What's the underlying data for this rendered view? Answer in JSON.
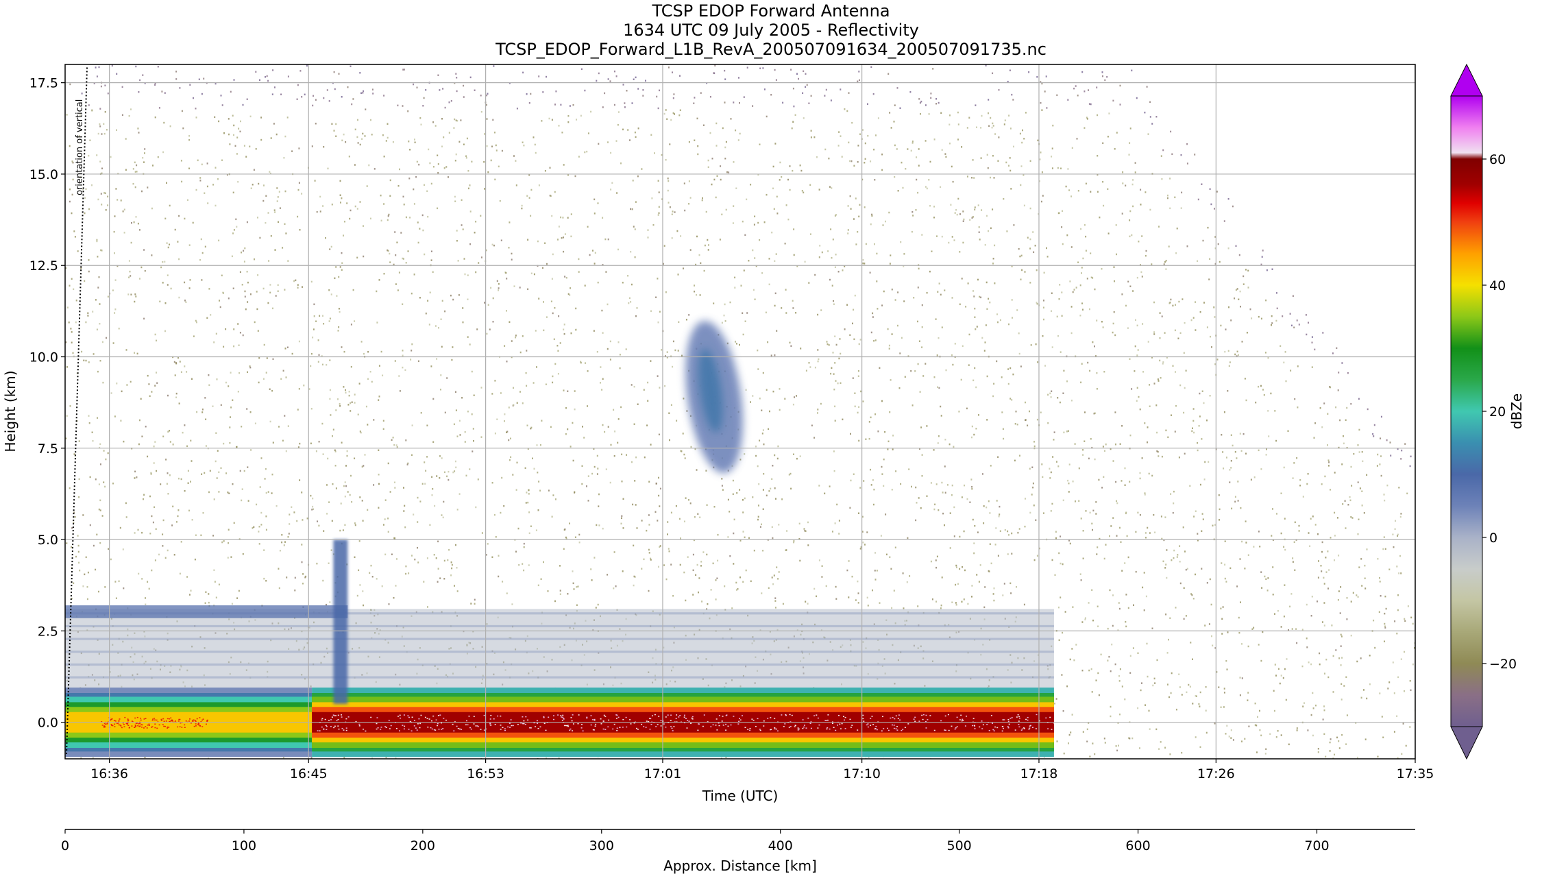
{
  "titles": {
    "line1": "TCSP EDOP Forward Antenna",
    "line2": "1634 UTC 09 July 2005 - Reflectivity",
    "line3": "TCSP_EDOP_Forward_L1B_RevA_200507091634_200507091735.nc"
  },
  "annotation": "orientation of vertical",
  "colors": {
    "background": "#ffffff",
    "grid": "#b0b0b0",
    "colormap": [
      {
        "dbz": -30,
        "color": "#6f5f8f"
      },
      {
        "dbz": -25,
        "color": "#8a6f86"
      },
      {
        "dbz": -20,
        "color": "#8f8a55"
      },
      {
        "dbz": -15,
        "color": "#a8a878"
      },
      {
        "dbz": -10,
        "color": "#c4c6a4"
      },
      {
        "dbz": -5,
        "color": "#c8ccca"
      },
      {
        "dbz": 0,
        "color": "#a9b2c8"
      },
      {
        "dbz": 5,
        "color": "#6d82b8"
      },
      {
        "dbz": 10,
        "color": "#4a68a8"
      },
      {
        "dbz": 15,
        "color": "#3a8fb0"
      },
      {
        "dbz": 20,
        "color": "#40c8b0"
      },
      {
        "dbz": 25,
        "color": "#2aa84a"
      },
      {
        "dbz": 30,
        "color": "#129018"
      },
      {
        "dbz": 35,
        "color": "#8cc818"
      },
      {
        "dbz": 40,
        "color": "#f5e000"
      },
      {
        "dbz": 45,
        "color": "#ffa000"
      },
      {
        "dbz": 50,
        "color": "#f04010"
      },
      {
        "dbz": 53,
        "color": "#e00000"
      },
      {
        "dbz": 56,
        "color": "#a00000"
      },
      {
        "dbz": 60,
        "color": "#800000"
      },
      {
        "dbz": 61,
        "color": "#f0e0f0"
      },
      {
        "dbz": 65,
        "color": "#f080f0"
      },
      {
        "dbz": 70,
        "color": "#b000f0"
      }
    ]
  },
  "chart_data": {
    "type": "heatmap",
    "x_axis": {
      "label": "Time (UTC)",
      "tick_labels": [
        "16:36",
        "16:45",
        "16:53",
        "17:01",
        "17:10",
        "17:18",
        "17:26",
        "17:35"
      ],
      "range": [
        "16:34",
        "17:35"
      ]
    },
    "y_axis": {
      "label": "Height (km)",
      "range": [
        -1.0,
        18.0
      ],
      "ticks": [
        0.0,
        2.5,
        5.0,
        7.5,
        10.0,
        12.5,
        15.0,
        17.5
      ],
      "tick_labels": [
        "0.0",
        "2.5",
        "5.0",
        "7.5",
        "10.0",
        "12.5",
        "15.0",
        "17.5"
      ]
    },
    "x2_axis": {
      "label": "Approx. Distance [km]",
      "range": [
        0,
        755
      ],
      "ticks": [
        0,
        100,
        200,
        300,
        400,
        500,
        600,
        700
      ],
      "tick_labels": [
        "0",
        "100",
        "200",
        "300",
        "400",
        "500",
        "600",
        "700"
      ]
    },
    "colorbar": {
      "label": "dBZe",
      "range": [
        -30,
        70
      ],
      "ticks": [
        -20,
        0,
        20,
        40,
        60
      ],
      "tick_labels": [
        "−20",
        "0",
        "20",
        "40",
        "60"
      ],
      "extend": "both"
    },
    "grid": true,
    "features": {
      "noise_floor_dbz": -15,
      "data_end_distance_km": 553,
      "surface_band_km": [
        -0.9,
        0.9
      ],
      "surface_dbz_weak_section": 42,
      "surface_dbz_strong_section": 56,
      "weak_to_strong_transition_km": 138,
      "boundary_layer_top_km": 3.1,
      "cloud_feature": {
        "distance_km": [
          348,
          378
        ],
        "height_km": [
          6.8,
          11.0
        ],
        "dbz": 10
      },
      "spike_feature": {
        "distance_km": [
          150,
          158
        ],
        "height_km": [
          0.5,
          5.0
        ],
        "dbz": 10
      },
      "upper_boundary": [
        {
          "distance_km": 0,
          "height_km": 18.0
        },
        {
          "distance_km": 596,
          "height_km": 18.0
        },
        {
          "distance_km": 755,
          "height_km": 7.3
        }
      ]
    }
  }
}
